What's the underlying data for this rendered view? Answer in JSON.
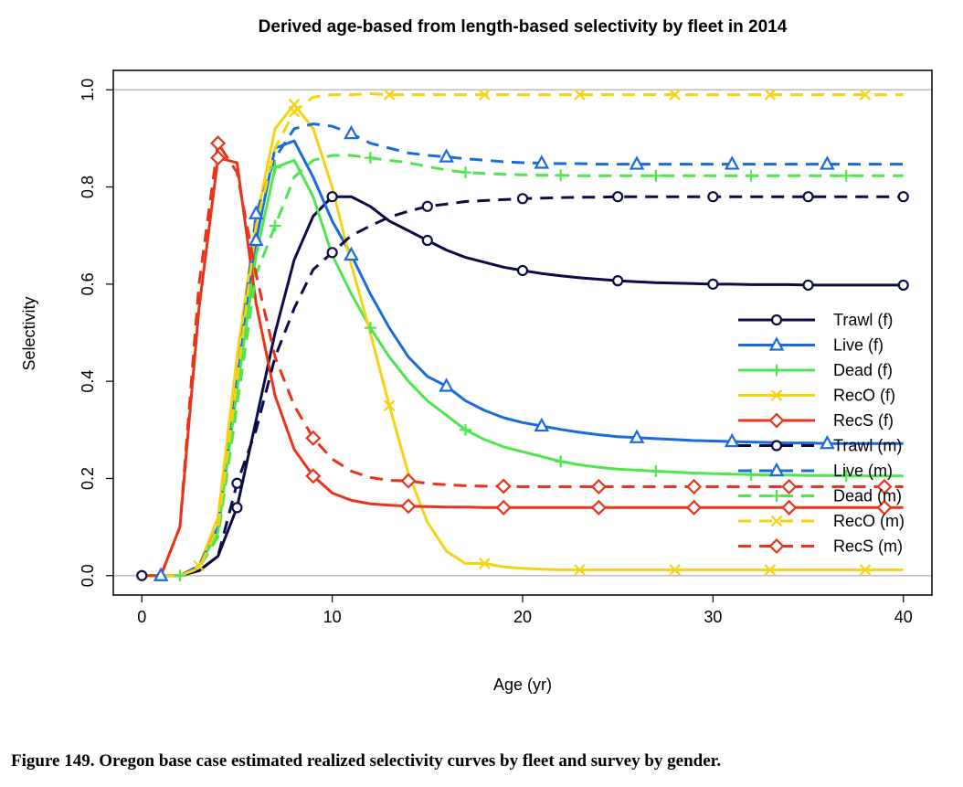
{
  "caption": "Figure 149.  Oregon base case estimated realized selectivity curves by fleet and survey by gender.",
  "chart_data": {
    "type": "line",
    "title": "Derived age-based from length-based selectivity by fleet in 2014",
    "xlabel": "Age (yr)",
    "ylabel": "Selectivity",
    "xlim": [
      -1.5,
      41.5
    ],
    "ylim": [
      -0.04,
      1.04
    ],
    "xticks": [
      0,
      10,
      20,
      30,
      40
    ],
    "xtick_labels": [
      "0",
      "10",
      "20",
      "30",
      "40"
    ],
    "yticks": [
      0,
      0.2,
      0.4,
      0.6,
      0.8,
      1.0
    ],
    "ytick_labels": [
      "0.0",
      "0.2",
      "0.4",
      "0.6",
      "0.8",
      "1.0"
    ],
    "reference_lines": [
      0,
      1.0
    ],
    "reference_color": "#bebebe",
    "legend_position": "right",
    "x": [
      0,
      1,
      2,
      3,
      4,
      5,
      6,
      7,
      8,
      9,
      10,
      11,
      12,
      13,
      14,
      15,
      16,
      17,
      18,
      19,
      20,
      21,
      22,
      23,
      24,
      25,
      26,
      27,
      28,
      29,
      30,
      31,
      32,
      33,
      34,
      35,
      36,
      37,
      38,
      39,
      40
    ],
    "series": [
      {
        "name": "Trawl (f)",
        "color": "#0b0b45",
        "dash": "solid",
        "marker": "circle",
        "marker_start": 0,
        "marker_step": 5,
        "values": [
          0,
          0,
          0,
          0.01,
          0.04,
          0.14,
          0.32,
          0.5,
          0.65,
          0.74,
          0.78,
          0.78,
          0.76,
          0.73,
          0.71,
          0.69,
          0.67,
          0.655,
          0.645,
          0.635,
          0.628,
          0.622,
          0.617,
          0.613,
          0.61,
          0.607,
          0.605,
          0.603,
          0.602,
          0.601,
          0.6,
          0.6,
          0.599,
          0.599,
          0.599,
          0.598,
          0.598,
          0.598,
          0.598,
          0.598,
          0.598
        ]
      },
      {
        "name": "Live (f)",
        "color": "#1a6ae0",
        "dash": "solid",
        "marker": "triangle",
        "marker_start": 1,
        "marker_step": 5,
        "values": [
          0,
          0,
          0,
          0.02,
          0.1,
          0.4,
          0.69,
          0.88,
          0.895,
          0.82,
          0.73,
          0.66,
          0.58,
          0.51,
          0.45,
          0.41,
          0.39,
          0.36,
          0.34,
          0.325,
          0.315,
          0.308,
          0.301,
          0.295,
          0.29,
          0.286,
          0.284,
          0.282,
          0.28,
          0.278,
          0.277,
          0.276,
          0.275,
          0.274,
          0.273,
          0.273,
          0.272,
          0.272,
          0.272,
          0.272,
          0.272
        ]
      },
      {
        "name": "Dead (f)",
        "color": "#4ee64e",
        "dash": "solid",
        "marker": "plus",
        "marker_start": 2,
        "marker_step": 5,
        "values": [
          0,
          0,
          0,
          0.02,
          0.09,
          0.38,
          0.66,
          0.84,
          0.855,
          0.78,
          0.66,
          0.58,
          0.51,
          0.45,
          0.4,
          0.36,
          0.33,
          0.3,
          0.28,
          0.265,
          0.255,
          0.245,
          0.235,
          0.228,
          0.223,
          0.219,
          0.217,
          0.215,
          0.213,
          0.211,
          0.21,
          0.209,
          0.208,
          0.207,
          0.207,
          0.206,
          0.206,
          0.205,
          0.205,
          0.205,
          0.205
        ]
      },
      {
        "name": "RecO (f)",
        "color": "#f5d312",
        "dash": "solid",
        "marker": "x",
        "marker_start": 3,
        "marker_step": 5,
        "values": [
          0,
          0,
          0,
          0.02,
          0.12,
          0.45,
          0.73,
          0.92,
          0.97,
          0.92,
          0.8,
          0.64,
          0.5,
          0.35,
          0.21,
          0.11,
          0.05,
          0.025,
          0.025,
          0.018,
          0.015,
          0.013,
          0.012,
          0.012,
          0.012,
          0.012,
          0.012,
          0.012,
          0.012,
          0.012,
          0.012,
          0.012,
          0.012,
          0.012,
          0.012,
          0.012,
          0.012,
          0.012,
          0.012,
          0.012,
          0.012
        ]
      },
      {
        "name": "RecS (f)",
        "color": "#e8351a",
        "dash": "solid",
        "marker": "diamond",
        "marker_start": 4,
        "marker_step": 5,
        "values": [
          0,
          0,
          0.1,
          0.55,
          0.86,
          0.85,
          0.56,
          0.37,
          0.26,
          0.205,
          0.17,
          0.155,
          0.148,
          0.145,
          0.143,
          0.142,
          0.141,
          0.141,
          0.14,
          0.14,
          0.14,
          0.14,
          0.14,
          0.14,
          0.14,
          0.14,
          0.14,
          0.14,
          0.14,
          0.14,
          0.14,
          0.14,
          0.14,
          0.14,
          0.14,
          0.14,
          0.14,
          0.14,
          0.14,
          0.14,
          0.14
        ]
      },
      {
        "name": "Trawl (m)",
        "color": "#0b0b45",
        "dash": "dashed",
        "marker": "circle",
        "marker_start": 5,
        "marker_step": 5,
        "values": [
          0,
          0,
          0,
          0.01,
          0.04,
          0.19,
          0.3,
          0.45,
          0.55,
          0.63,
          0.665,
          0.7,
          0.72,
          0.738,
          0.75,
          0.76,
          0.765,
          0.77,
          0.772,
          0.774,
          0.776,
          0.777,
          0.778,
          0.779,
          0.779,
          0.78,
          0.78,
          0.78,
          0.78,
          0.78,
          0.78,
          0.78,
          0.78,
          0.78,
          0.78,
          0.78,
          0.78,
          0.78,
          0.78,
          0.78,
          0.78
        ]
      },
      {
        "name": "Live (m)",
        "color": "#1a6ae0",
        "dash": "dashed",
        "marker": "triangle",
        "marker_start": 6,
        "marker_step": 5,
        "values": [
          0,
          0,
          0,
          0.02,
          0.1,
          0.4,
          0.745,
          0.86,
          0.92,
          0.93,
          0.925,
          0.91,
          0.89,
          0.88,
          0.87,
          0.865,
          0.862,
          0.858,
          0.855,
          0.852,
          0.85,
          0.849,
          0.848,
          0.848,
          0.847,
          0.847,
          0.847,
          0.847,
          0.847,
          0.847,
          0.847,
          0.847,
          0.847,
          0.847,
          0.847,
          0.847,
          0.847,
          0.847,
          0.847,
          0.847,
          0.847
        ]
      },
      {
        "name": "Dead (m)",
        "color": "#4ee64e",
        "dash": "dashed",
        "marker": "plus",
        "marker_start": 7,
        "marker_step": 5,
        "values": [
          0,
          0,
          0,
          0.015,
          0.08,
          0.35,
          0.62,
          0.72,
          0.82,
          0.855,
          0.865,
          0.865,
          0.86,
          0.855,
          0.85,
          0.842,
          0.835,
          0.83,
          0.828,
          0.826,
          0.825,
          0.824,
          0.824,
          0.823,
          0.823,
          0.823,
          0.823,
          0.823,
          0.823,
          0.823,
          0.823,
          0.823,
          0.823,
          0.823,
          0.823,
          0.823,
          0.823,
          0.823,
          0.823,
          0.823,
          0.823
        ]
      },
      {
        "name": "RecO (m)",
        "color": "#f5d312",
        "dash": "dashed",
        "marker": "x",
        "marker_start": 8,
        "marker_step": 5,
        "values": [
          0,
          0,
          0,
          0.015,
          0.1,
          0.4,
          0.72,
          0.88,
          0.955,
          0.985,
          0.99,
          0.99,
          0.992,
          0.99,
          0.99,
          0.99,
          0.99,
          0.99,
          0.99,
          0.99,
          0.99,
          0.99,
          0.99,
          0.99,
          0.99,
          0.99,
          0.99,
          0.99,
          0.99,
          0.99,
          0.99,
          0.99,
          0.99,
          0.99,
          0.99,
          0.99,
          0.99,
          0.99,
          0.99,
          0.99,
          0.99
        ]
      },
      {
        "name": "RecS (m)",
        "color": "#e8351a",
        "dash": "dashed",
        "marker": "diamond",
        "marker_start": 4,
        "marker_step": 5,
        "values": [
          0,
          0,
          0.1,
          0.6,
          0.89,
          0.83,
          0.62,
          0.45,
          0.35,
          0.283,
          0.24,
          0.215,
          0.202,
          0.196,
          0.195,
          0.19,
          0.187,
          0.185,
          0.184,
          0.184,
          0.183,
          0.183,
          0.183,
          0.183,
          0.183,
          0.183,
          0.183,
          0.183,
          0.183,
          0.183,
          0.183,
          0.183,
          0.183,
          0.183,
          0.183,
          0.183,
          0.183,
          0.183,
          0.183,
          0.183,
          0.183
        ]
      }
    ]
  }
}
